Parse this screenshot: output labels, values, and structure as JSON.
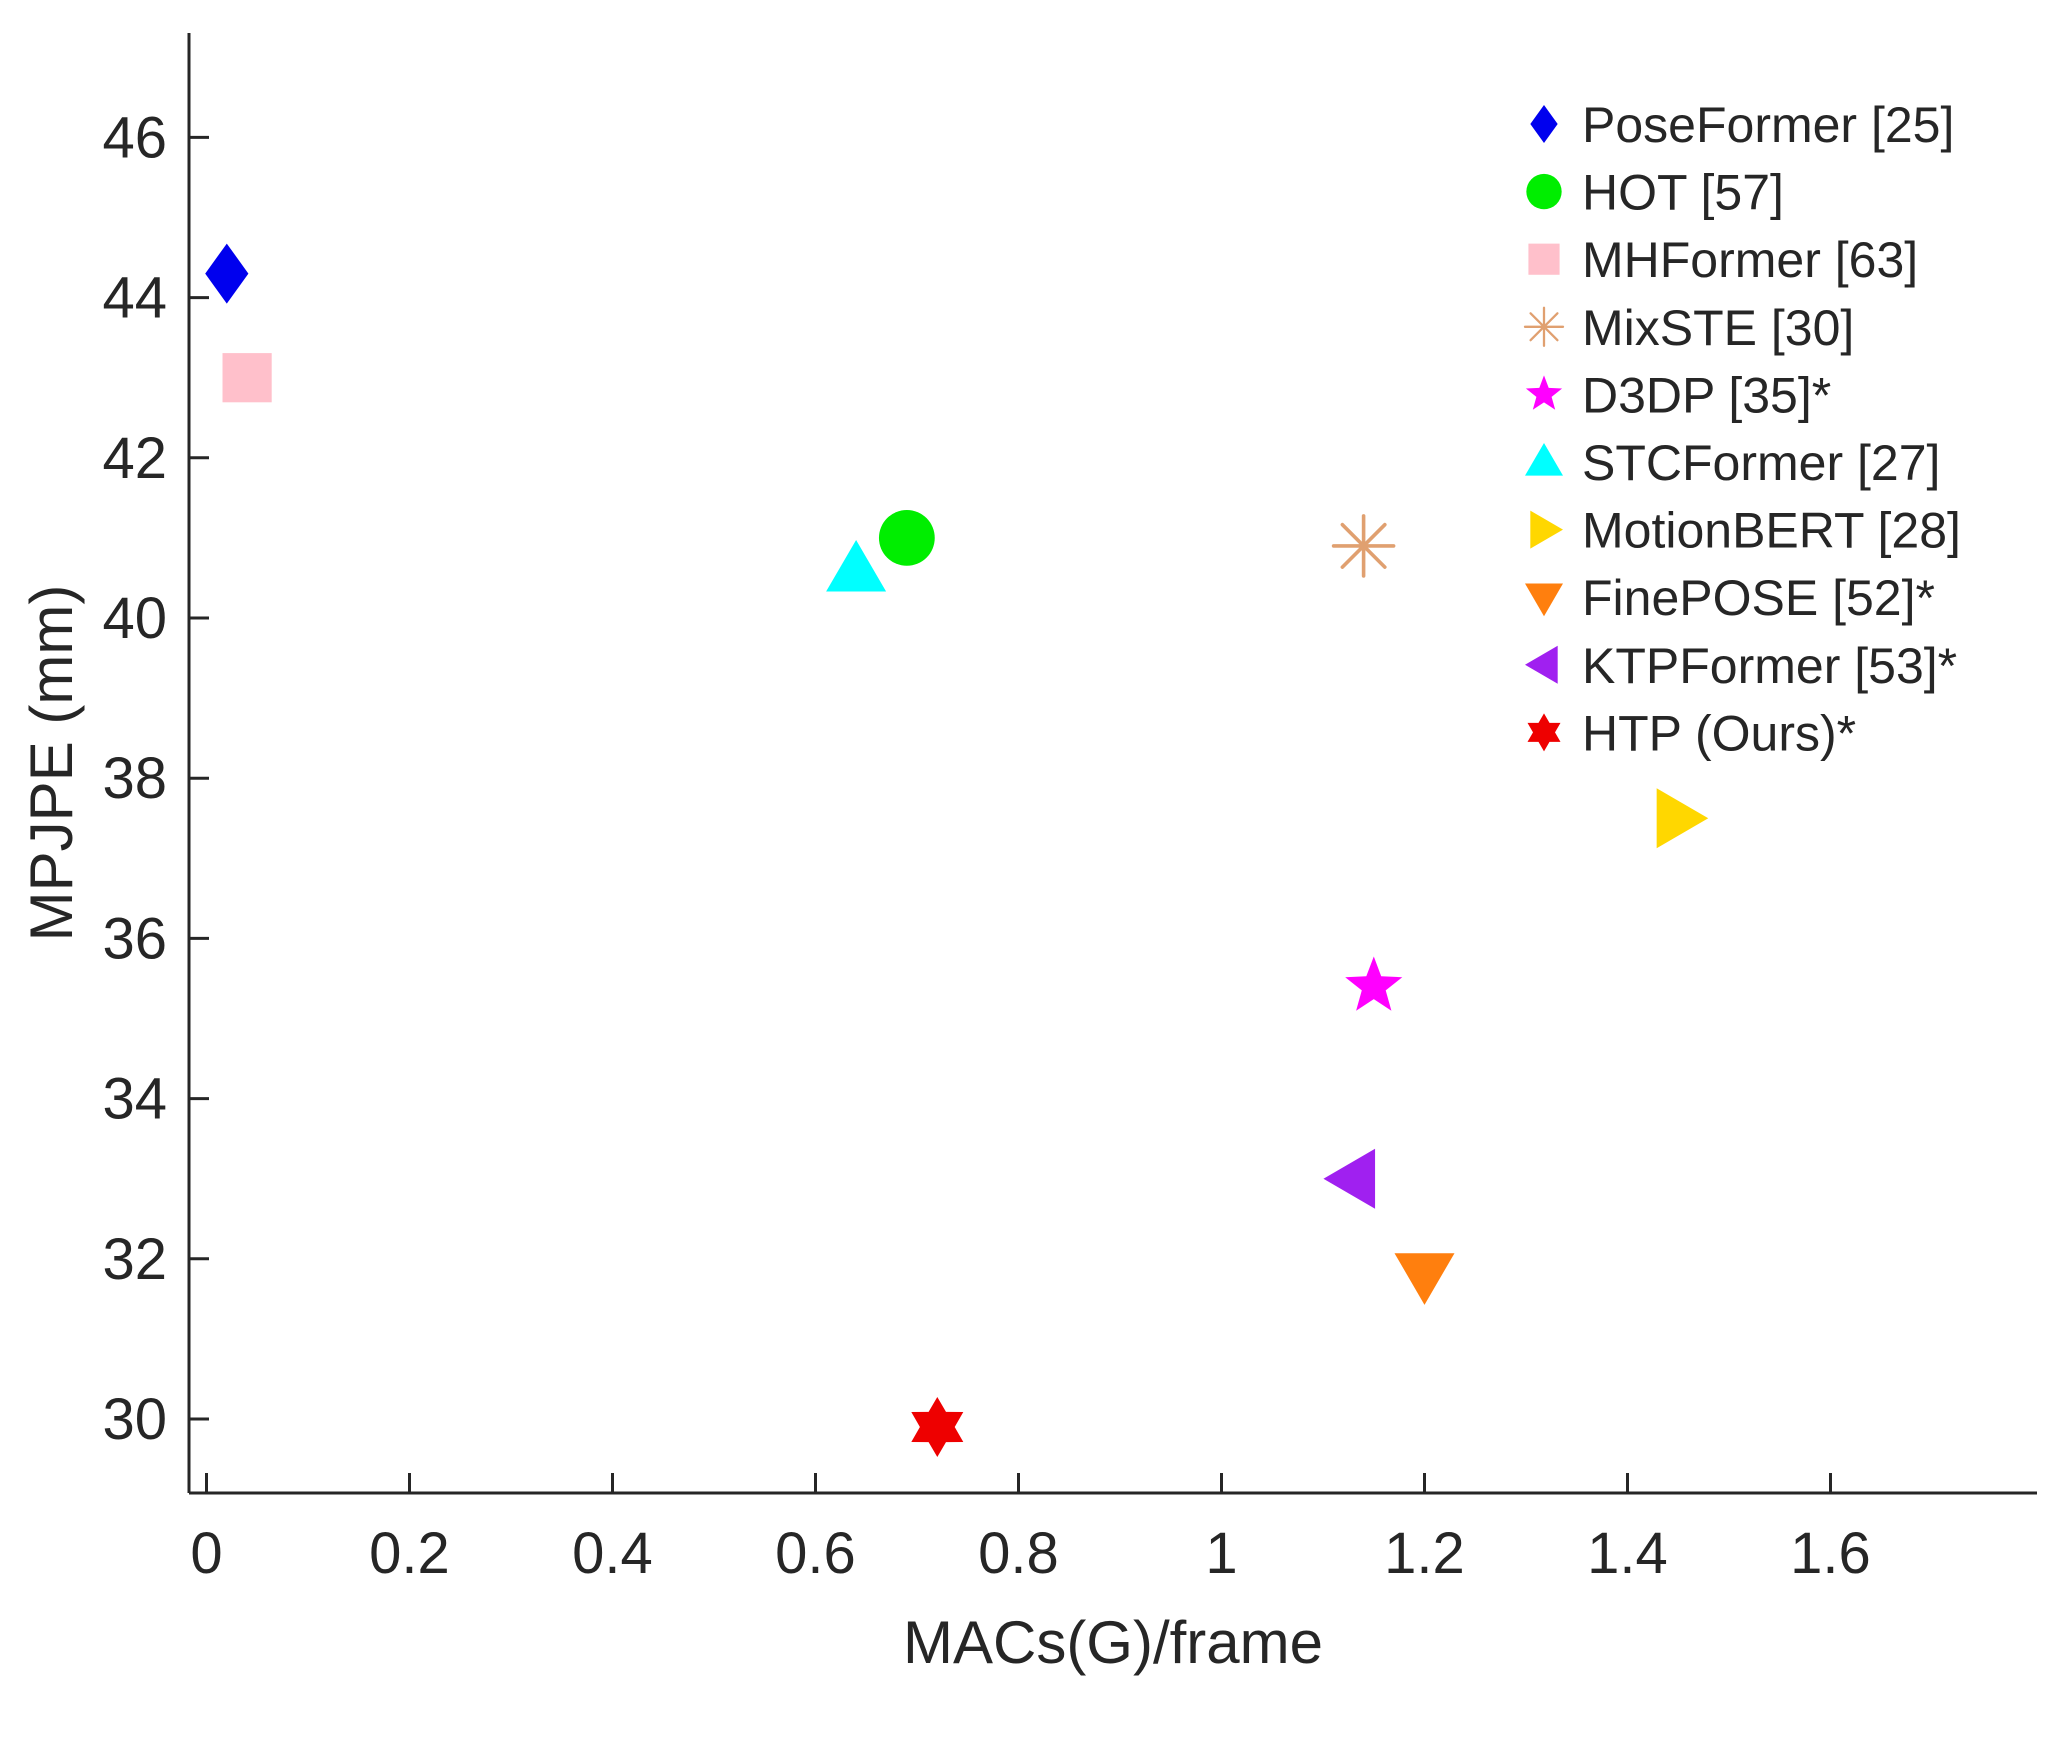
{
  "chart_data": {
    "type": "scatter",
    "title": "",
    "xlabel": "MACs(G)/frame",
    "ylabel": "MPJPE (mm)",
    "xlim": [
      -0.02,
      1.8
    ],
    "ylim": [
      29.1,
      47.3
    ],
    "xticks": [
      0,
      0.2,
      0.4,
      0.6,
      0.8,
      1,
      1.2,
      1.4,
      1.6
    ],
    "xtick_labels": [
      "0",
      "0.2",
      "0.4",
      "0.6",
      "0.8",
      "1",
      "1.2",
      "1.4",
      "1.6"
    ],
    "yticks": [
      30,
      32,
      34,
      36,
      38,
      40,
      42,
      44,
      46
    ],
    "ytick_labels": [
      "30",
      "32",
      "34",
      "36",
      "38",
      "40",
      "42",
      "44",
      "46"
    ],
    "grid": false,
    "legend_position": "top-right",
    "series": [
      {
        "name": "PoseFormer [25]",
        "x": 0.02,
        "y": 44.3,
        "marker": "diamond",
        "color": "#0000ee"
      },
      {
        "name": "HOT [57]",
        "x": 0.69,
        "y": 41.0,
        "marker": "circle",
        "color": "#00ee00"
      },
      {
        "name": "MHFormer [63]",
        "x": 0.04,
        "y": 43.0,
        "marker": "square",
        "color": "#ffc0cb"
      },
      {
        "name": "MixSTE [30]",
        "x": 1.14,
        "y": 40.9,
        "marker": "asterisk",
        "color": "#e0a070"
      },
      {
        "name": "D3DP [35]*",
        "x": 1.15,
        "y": 35.4,
        "marker": "pentagram",
        "color": "#ff00ff"
      },
      {
        "name": "STCFormer [27]",
        "x": 0.64,
        "y": 40.6,
        "marker": "triangle-up",
        "color": "#00ffff"
      },
      {
        "name": "MotionBERT [28]",
        "x": 1.45,
        "y": 37.5,
        "marker": "triangle-right",
        "color": "#ffd700"
      },
      {
        "name": "FinePOSE [52]*",
        "x": 1.2,
        "y": 31.8,
        "marker": "triangle-down",
        "color": "#ff7f0e"
      },
      {
        "name": "KTPFormer [53]*",
        "x": 1.13,
        "y": 33.0,
        "marker": "triangle-left",
        "color": "#a020f0"
      },
      {
        "name": "HTP (Ours)*",
        "x": 0.72,
        "y": 29.9,
        "marker": "hexagram",
        "color": "#ee0000"
      }
    ]
  }
}
